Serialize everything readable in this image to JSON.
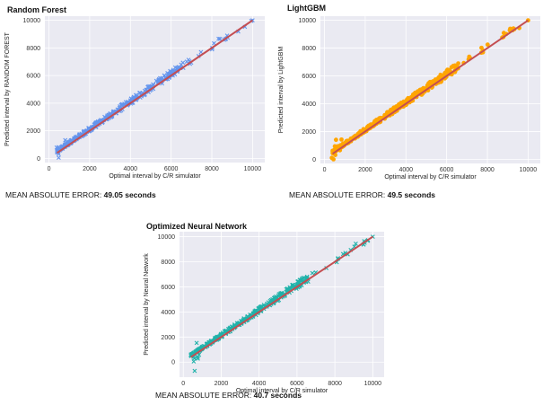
{
  "colors": {
    "plot_bg": "#eaeaf2",
    "grid": "#ffffff",
    "fit_line": "#c44e52",
    "rf_marker": "#6495ed",
    "lgbm_marker": "#ffa500",
    "nn_marker": "#20b2aa"
  },
  "chart_data": [
    {
      "type": "scatter",
      "title": "Random Forest",
      "xlabel": "Optimal interval by C/R simulator",
      "ylabel": "Predicted interval by RANDOM FOREST",
      "xlim": [
        -200,
        10600
      ],
      "ylim": [
        -300,
        10300
      ],
      "xticks": [
        0,
        2000,
        4000,
        6000,
        8000,
        10000
      ],
      "yticks": [
        0,
        2000,
        4000,
        6000,
        8000,
        10000
      ],
      "grid": true,
      "marker": "x",
      "fit_line": {
        "x": [
          400,
          10000
        ],
        "y": [
          400,
          10000
        ]
      },
      "mae_label": "MEAN ABSOLUTE ERROR: ",
      "mae_value": "49.05 seconds"
    },
    {
      "type": "scatter",
      "title": "LightGBM",
      "xlabel": "Optimal interval by C/R simulator",
      "ylabel": "Predicted interval by LightGBM",
      "xlim": [
        -200,
        10600
      ],
      "ylim": [
        -300,
        10300
      ],
      "xticks": [
        0,
        2000,
        4000,
        6000,
        8000,
        10000
      ],
      "yticks": [
        0,
        2000,
        4000,
        6000,
        8000,
        10000
      ],
      "grid": true,
      "marker": "circle",
      "fit_line": {
        "x": [
          400,
          10000
        ],
        "y": [
          400,
          10000
        ]
      },
      "mae_label": "MEAN ABSOLUTE ERROR: ",
      "mae_value": "49.5 seconds"
    },
    {
      "type": "scatter",
      "title": "Optimized Neural Network",
      "xlabel": "Optimal interval by C/R simulator",
      "ylabel": "Predicted interval by Neural Network",
      "xlim": [
        -200,
        10600
      ],
      "ylim": [
        -1200,
        10400
      ],
      "xticks": [
        0,
        2000,
        4000,
        6000,
        8000,
        10000
      ],
      "yticks": [
        0,
        2000,
        4000,
        6000,
        8000,
        10000
      ],
      "grid": true,
      "marker": "x",
      "fit_line": {
        "x": [
          400,
          10000
        ],
        "y": [
          400,
          10000
        ]
      },
      "mae_label": "MEAN ABSOLUTE ERROR: ",
      "mae_value": "40.7 seconds"
    }
  ]
}
